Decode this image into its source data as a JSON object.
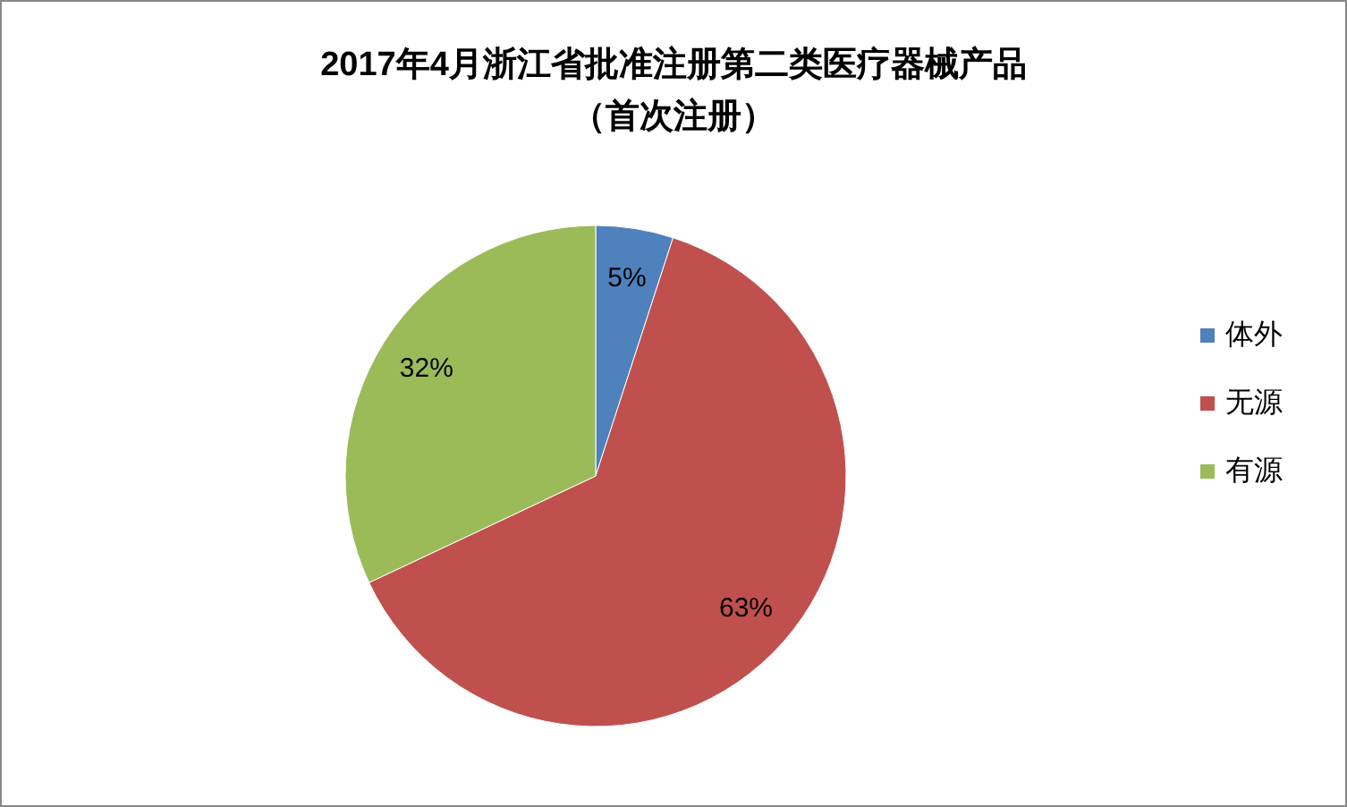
{
  "chart_data": {
    "type": "pie",
    "title": "2017年4月浙江省批准注册第二类医疗器械产品（首次注册）",
    "categories": [
      "体外",
      "无源",
      "有源"
    ],
    "values": [
      5,
      63,
      32
    ],
    "value_labels": [
      "5%",
      "63%",
      "32%"
    ],
    "colors": [
      "#4f81bd",
      "#c0504d",
      "#9bbb59"
    ],
    "legend": "right"
  }
}
